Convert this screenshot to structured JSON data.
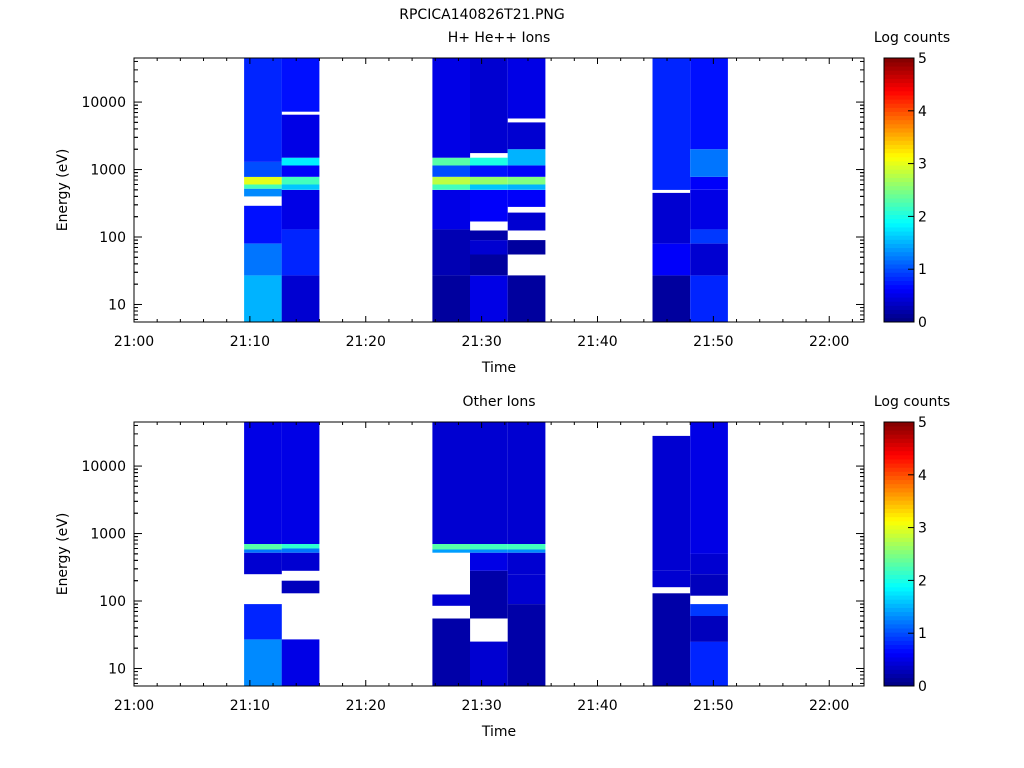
{
  "figure": {
    "title": "RPCICA140826T21.PNG"
  },
  "chart_data": [
    {
      "type": "heatmap",
      "title": "H+ He++ Ions",
      "xlabel": "Time",
      "ylabel": "Energy (eV)",
      "x_ticks": [
        "21:00",
        "21:10",
        "21:20",
        "21:30",
        "21:40",
        "21:50",
        "22:00"
      ],
      "xlim": [
        "21:00",
        "22:03"
      ],
      "yscale": "log",
      "ylim": [
        5.5,
        45000
      ],
      "y_ticks": [
        "10",
        "100",
        "1000",
        "10000"
      ],
      "colorbar": {
        "label": "Log counts",
        "range": [
          0,
          5
        ],
        "ticks": [
          "0",
          "1",
          "2",
          "3",
          "4",
          "5"
        ],
        "colormap": "jet"
      },
      "columns": [
        {
          "start": "21:09:30",
          "end": "21:12:45",
          "bands": [
            {
              "emin": 5.5,
              "emax": 27,
              "value": 1.5
            },
            {
              "emin": 27,
              "emax": 80,
              "value": 1.2
            },
            {
              "emin": 80,
              "emax": 290,
              "value": 0.7
            },
            {
              "emin": 290,
              "emax": 400,
              "value": null
            },
            {
              "emin": 400,
              "emax": 520,
              "value": 1.3
            },
            {
              "emin": 520,
              "emax": 600,
              "value": 2.2
            },
            {
              "emin": 600,
              "emax": 780,
              "value": 3.0
            },
            {
              "emin": 780,
              "emax": 1300,
              "value": 1.0
            },
            {
              "emin": 1300,
              "emax": 45000,
              "value": 0.8
            }
          ]
        },
        {
          "start": "21:12:45",
          "end": "21:16:00",
          "bands": [
            {
              "emin": 5.5,
              "emax": 27,
              "value": 0.4
            },
            {
              "emin": 27,
              "emax": 130,
              "value": 0.8
            },
            {
              "emin": 130,
              "emax": 500,
              "value": 0.5
            },
            {
              "emin": 500,
              "emax": 600,
              "value": 1.6
            },
            {
              "emin": 600,
              "emax": 780,
              "value": 2.2
            },
            {
              "emin": 780,
              "emax": 1150,
              "value": 0.6
            },
            {
              "emin": 1150,
              "emax": 1500,
              "value": 1.8
            },
            {
              "emin": 1500,
              "emax": 6500,
              "value": 0.5
            },
            {
              "emin": 6500,
              "emax": 7200,
              "value": null
            },
            {
              "emin": 7200,
              "emax": 45000,
              "value": 0.7
            }
          ]
        },
        {
          "start": "21:25:45",
          "end": "21:29:00",
          "bands": [
            {
              "emin": 5.5,
              "emax": 27,
              "value": 0.15
            },
            {
              "emin": 27,
              "emax": 130,
              "value": 0.25
            },
            {
              "emin": 130,
              "emax": 500,
              "value": 0.5
            },
            {
              "emin": 500,
              "emax": 600,
              "value": 2.2
            },
            {
              "emin": 600,
              "emax": 780,
              "value": 2.8
            },
            {
              "emin": 780,
              "emax": 1150,
              "value": 1.0
            },
            {
              "emin": 1150,
              "emax": 1500,
              "value": 2.3
            },
            {
              "emin": 1500,
              "emax": 45000,
              "value": 0.5
            }
          ]
        },
        {
          "start": "21:29:00",
          "end": "21:32:15",
          "bands": [
            {
              "emin": 5.5,
              "emax": 27,
              "value": 0.5
            },
            {
              "emin": 27,
              "emax": 55,
              "value": 0.15
            },
            {
              "emin": 55,
              "emax": 90,
              "value": 0.4
            },
            {
              "emin": 90,
              "emax": 125,
              "value": 0.2
            },
            {
              "emin": 125,
              "emax": 170,
              "value": null
            },
            {
              "emin": 170,
              "emax": 500,
              "value": 0.6
            },
            {
              "emin": 500,
              "emax": 600,
              "value": 1.6
            },
            {
              "emin": 600,
              "emax": 780,
              "value": 2.6
            },
            {
              "emin": 780,
              "emax": 1150,
              "value": 0.7
            },
            {
              "emin": 1150,
              "emax": 1500,
              "value": 2.0
            },
            {
              "emin": 1500,
              "emax": 1750,
              "value": null
            },
            {
              "emin": 1750,
              "emax": 45000,
              "value": 0.4
            }
          ]
        },
        {
          "start": "21:32:15",
          "end": "21:35:30",
          "bands": [
            {
              "emin": 5.5,
              "emax": 27,
              "value": 0.15
            },
            {
              "emin": 27,
              "emax": 55,
              "value": null
            },
            {
              "emin": 55,
              "emax": 90,
              "value": 0.15
            },
            {
              "emin": 90,
              "emax": 125,
              "value": null
            },
            {
              "emin": 125,
              "emax": 230,
              "value": 0.4
            },
            {
              "emin": 230,
              "emax": 280,
              "value": null
            },
            {
              "emin": 280,
              "emax": 500,
              "value": 0.6
            },
            {
              "emin": 500,
              "emax": 600,
              "value": 1.5
            },
            {
              "emin": 600,
              "emax": 780,
              "value": 2.5
            },
            {
              "emin": 780,
              "emax": 1150,
              "value": 0.6
            },
            {
              "emin": 1150,
              "emax": 2000,
              "value": 1.5
            },
            {
              "emin": 2000,
              "emax": 5000,
              "value": 0.4
            },
            {
              "emin": 5000,
              "emax": 5700,
              "value": null
            },
            {
              "emin": 5700,
              "emax": 45000,
              "value": 0.5
            }
          ]
        },
        {
          "start": "21:44:45",
          "end": "21:48:00",
          "bands": [
            {
              "emin": 5.5,
              "emax": 27,
              "value": 0.15
            },
            {
              "emin": 27,
              "emax": 80,
              "value": 0.6
            },
            {
              "emin": 80,
              "emax": 450,
              "value": 0.4
            },
            {
              "emin": 450,
              "emax": 500,
              "value": null
            },
            {
              "emin": 500,
              "emax": 45000,
              "value": 0.8
            }
          ]
        },
        {
          "start": "21:48:00",
          "end": "21:51:15",
          "bands": [
            {
              "emin": 5.5,
              "emax": 27,
              "value": 0.8
            },
            {
              "emin": 27,
              "emax": 80,
              "value": 0.4
            },
            {
              "emin": 80,
              "emax": 130,
              "value": 0.9
            },
            {
              "emin": 130,
              "emax": 500,
              "value": 0.5
            },
            {
              "emin": 500,
              "emax": 780,
              "value": 0.6
            },
            {
              "emin": 780,
              "emax": 2000,
              "value": 1.2
            },
            {
              "emin": 2000,
              "emax": 45000,
              "value": 0.7
            }
          ]
        }
      ]
    },
    {
      "type": "heatmap",
      "title": "Other Ions",
      "xlabel": "Time",
      "ylabel": "Energy (eV)",
      "x_ticks": [
        "21:00",
        "21:10",
        "21:20",
        "21:30",
        "21:40",
        "21:50",
        "22:00"
      ],
      "xlim": [
        "21:00",
        "22:03"
      ],
      "yscale": "log",
      "ylim": [
        5.5,
        45000
      ],
      "y_ticks": [
        "10",
        "100",
        "1000",
        "10000"
      ],
      "colorbar": {
        "label": "Log counts",
        "range": [
          0,
          5
        ],
        "ticks": [
          "0",
          "1",
          "2",
          "3",
          "4",
          "5"
        ],
        "colormap": "jet"
      },
      "columns": [
        {
          "start": "21:09:30",
          "end": "21:12:45",
          "bands": [
            {
              "emin": 5.5,
              "emax": 27,
              "value": 1.3
            },
            {
              "emin": 27,
              "emax": 90,
              "value": 0.8
            },
            {
              "emin": 90,
              "emax": 250,
              "value": null
            },
            {
              "emin": 250,
              "emax": 520,
              "value": 0.4
            },
            {
              "emin": 520,
              "emax": 580,
              "value": 1.2
            },
            {
              "emin": 580,
              "emax": 700,
              "value": 2.3
            },
            {
              "emin": 700,
              "emax": 45000,
              "value": 0.5
            }
          ]
        },
        {
          "start": "21:12:45",
          "end": "21:16:00",
          "bands": [
            {
              "emin": 5.5,
              "emax": 27,
              "value": 0.5
            },
            {
              "emin": 27,
              "emax": 130,
              "value": null
            },
            {
              "emin": 130,
              "emax": 200,
              "value": 0.3
            },
            {
              "emin": 200,
              "emax": 280,
              "value": null
            },
            {
              "emin": 280,
              "emax": 520,
              "value": 0.4
            },
            {
              "emin": 520,
              "emax": 600,
              "value": 1.2
            },
            {
              "emin": 600,
              "emax": 700,
              "value": 2.1
            },
            {
              "emin": 700,
              "emax": 45000,
              "value": 0.5
            }
          ]
        },
        {
          "start": "21:25:45",
          "end": "21:29:00",
          "bands": [
            {
              "emin": 5.5,
              "emax": 55,
              "value": 0.2
            },
            {
              "emin": 55,
              "emax": 85,
              "value": null
            },
            {
              "emin": 85,
              "emax": 125,
              "value": 0.4
            },
            {
              "emin": 125,
              "emax": 520,
              "value": null
            },
            {
              "emin": 520,
              "emax": 580,
              "value": 1.4
            },
            {
              "emin": 580,
              "emax": 700,
              "value": 2.3
            },
            {
              "emin": 700,
              "emax": 45000,
              "value": 0.4
            }
          ]
        },
        {
          "start": "21:29:00",
          "end": "21:32:15",
          "bands": [
            {
              "emin": 5.5,
              "emax": 25,
              "value": 0.4
            },
            {
              "emin": 25,
              "emax": 55,
              "value": null
            },
            {
              "emin": 55,
              "emax": 280,
              "value": 0.2
            },
            {
              "emin": 280,
              "emax": 520,
              "value": 0.5
            },
            {
              "emin": 520,
              "emax": 580,
              "value": 1.3
            },
            {
              "emin": 580,
              "emax": 700,
              "value": 2.2
            },
            {
              "emin": 700,
              "emax": 45000,
              "value": 0.4
            }
          ]
        },
        {
          "start": "21:32:15",
          "end": "21:35:30",
          "bands": [
            {
              "emin": 5.5,
              "emax": 90,
              "value": 0.2
            },
            {
              "emin": 90,
              "emax": 250,
              "value": 0.4
            },
            {
              "emin": 250,
              "emax": 520,
              "value": 0.4
            },
            {
              "emin": 520,
              "emax": 580,
              "value": 1.3
            },
            {
              "emin": 580,
              "emax": 700,
              "value": 2.2
            },
            {
              "emin": 700,
              "emax": 45000,
              "value": 0.4
            }
          ]
        },
        {
          "start": "21:44:45",
          "end": "21:48:00",
          "bands": [
            {
              "emin": 5.5,
              "emax": 130,
              "value": 0.2
            },
            {
              "emin": 130,
              "emax": 160,
              "value": null
            },
            {
              "emin": 160,
              "emax": 280,
              "value": 0.4
            },
            {
              "emin": 280,
              "emax": 28000,
              "value": 0.4
            }
          ]
        },
        {
          "start": "21:48:00",
          "end": "21:51:15",
          "bands": [
            {
              "emin": 5.5,
              "emax": 25,
              "value": 0.8
            },
            {
              "emin": 25,
              "emax": 60,
              "value": 0.3
            },
            {
              "emin": 60,
              "emax": 90,
              "value": 0.9
            },
            {
              "emin": 90,
              "emax": 120,
              "value": null
            },
            {
              "emin": 120,
              "emax": 250,
              "value": 0.3
            },
            {
              "emin": 250,
              "emax": 500,
              "value": 0.4
            },
            {
              "emin": 500,
              "emax": 45000,
              "value": 0.5
            }
          ]
        }
      ]
    }
  ]
}
